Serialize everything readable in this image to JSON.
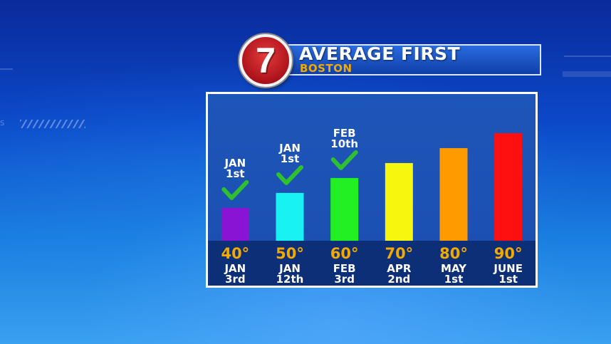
{
  "header": {
    "logo_number": "7",
    "title": "AVERAGE FIRST",
    "subtitle": "BOSTON"
  },
  "decor": {
    "side_text": "S"
  },
  "chart_data": {
    "type": "bar",
    "title": "AVERAGE FIRST",
    "subtitle": "BOSTON",
    "categories": [
      "40°",
      "50°",
      "60°",
      "70°",
      "80°",
      "90°"
    ],
    "x_sublabels": [
      [
        "JAN",
        "3rd"
      ],
      [
        "JAN",
        "12th"
      ],
      [
        "FEB",
        "3rd"
      ],
      [
        "APR",
        "2nd"
      ],
      [
        "MAY",
        "1st"
      ],
      [
        "JUNE",
        "1st"
      ]
    ],
    "values": [
      40,
      50,
      60,
      70,
      80,
      90
    ],
    "ylim": [
      18,
      100
    ],
    "colors": [
      "#8a14d4",
      "#19f2f2",
      "#22f022",
      "#f6f60e",
      "#ff9a00",
      "#ff1010"
    ],
    "annotations": [
      {
        "category_index": 0,
        "lines": [
          "JAN",
          "1st"
        ],
        "check": true
      },
      {
        "category_index": 1,
        "lines": [
          "JAN",
          "1st"
        ],
        "check": true
      },
      {
        "category_index": 2,
        "lines": [
          "FEB",
          "10th"
        ],
        "check": true
      }
    ],
    "label_color": "#f2a900",
    "check_color": "#2fc02f",
    "grid": false,
    "legend": "none"
  }
}
